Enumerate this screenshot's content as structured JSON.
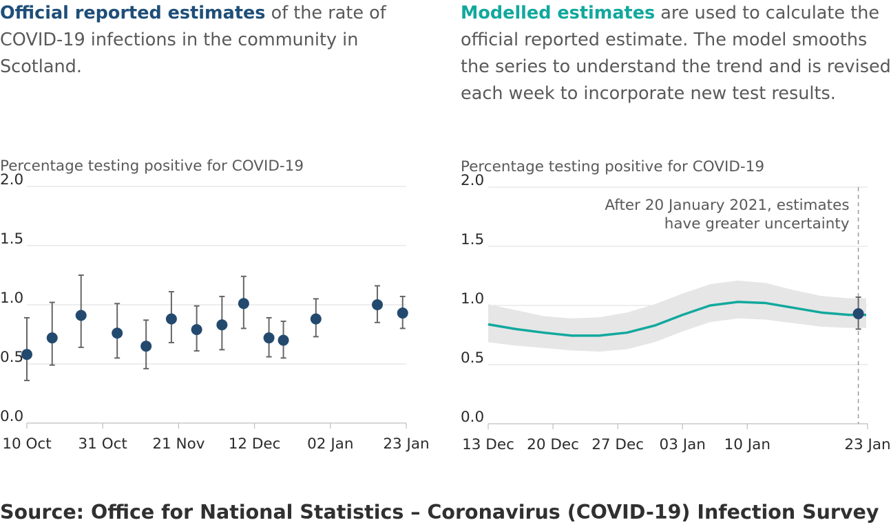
{
  "colors": {
    "official": "#1f4e79",
    "modelled": "#12a89d",
    "band": "#e6e6e6",
    "point": "#234a6e",
    "errorbar": "#666666",
    "grid": "#dedede"
  },
  "left_panel": {
    "highlight": "Official reported estimates",
    "text": " of the rate of COVID-19 infections in the community in Scotland."
  },
  "right_panel": {
    "highlight": "Modelled estimates",
    "text": " are used to calculate the official reported estimate. The model smooths the series to understand the trend and is revised each week to incorporate new test results."
  },
  "source": "Source: Office for National Statistics – Coronavirus (COVID-19) Infection Survey",
  "chart_data": [
    {
      "type": "scatter",
      "ylabel": "Percentage testing positive for COVID-19",
      "ylim": [
        0,
        2.0
      ],
      "yticks": [
        "0.0",
        "0.5",
        "1.0",
        "1.5",
        "2.0"
      ],
      "xlim": [
        "2020-10-10",
        "2021-01-23"
      ],
      "xticks": [
        {
          "date": "2020-10-10",
          "label": "10 Oct"
        },
        {
          "date": "2020-10-31",
          "label": "31 Oct"
        },
        {
          "date": "2020-11-21",
          "label": "21 Nov"
        },
        {
          "date": "2020-12-12",
          "label": "12 Dec"
        },
        {
          "date": "2021-01-02",
          "label": "02 Jan"
        },
        {
          "date": "2021-01-23",
          "label": "23 Jan"
        }
      ],
      "points": [
        {
          "x": "2020-10-10",
          "y": 0.58,
          "low": 0.36,
          "high": 0.89
        },
        {
          "x": "2020-10-17",
          "y": 0.72,
          "low": 0.49,
          "high": 1.02
        },
        {
          "x": "2020-10-25",
          "y": 0.91,
          "low": 0.64,
          "high": 1.25
        },
        {
          "x": "2020-11-04",
          "y": 0.76,
          "low": 0.55,
          "high": 1.01
        },
        {
          "x": "2020-11-12",
          "y": 0.65,
          "low": 0.46,
          "high": 0.87
        },
        {
          "x": "2020-11-19",
          "y": 0.88,
          "low": 0.68,
          "high": 1.11
        },
        {
          "x": "2020-11-26",
          "y": 0.79,
          "low": 0.61,
          "high": 0.99
        },
        {
          "x": "2020-12-03",
          "y": 0.83,
          "low": 0.62,
          "high": 1.07
        },
        {
          "x": "2020-12-09",
          "y": 1.01,
          "low": 0.8,
          "high": 1.24
        },
        {
          "x": "2020-12-16",
          "y": 0.72,
          "low": 0.56,
          "high": 0.89
        },
        {
          "x": "2020-12-20",
          "y": 0.7,
          "low": 0.55,
          "high": 0.86
        },
        {
          "x": "2020-12-29",
          "y": 0.88,
          "low": 0.73,
          "high": 1.05
        },
        {
          "x": "2021-01-15",
          "y": 1.0,
          "low": 0.85,
          "high": 1.16
        },
        {
          "x": "2021-01-22",
          "y": 0.93,
          "low": 0.8,
          "high": 1.07
        }
      ]
    },
    {
      "type": "line",
      "ylabel": "Percentage testing positive for COVID-19",
      "ylim": [
        0,
        2.0
      ],
      "yticks": [
        "0.0",
        "0.5",
        "1.0",
        "1.5",
        "2.0"
      ],
      "xlim": [
        "2020-12-13",
        "2021-01-23"
      ],
      "xticks": [
        {
          "date": "2020-12-13",
          "label": "13 Dec"
        },
        {
          "date": "2020-12-20",
          "label": "20 Dec"
        },
        {
          "date": "2020-12-27",
          "label": "27 Dec"
        },
        {
          "date": "2021-01-03",
          "label": "03 Jan"
        },
        {
          "date": "2021-01-10",
          "label": "10 Jan"
        },
        {
          "date": "2021-01-23",
          "label": "23 Jan"
        }
      ],
      "line": [
        {
          "x": "2020-12-13",
          "y": 0.84,
          "low": 0.69,
          "high": 1.01
        },
        {
          "x": "2020-12-16",
          "y": 0.8,
          "low": 0.66,
          "high": 0.96
        },
        {
          "x": "2020-12-19",
          "y": 0.77,
          "low": 0.64,
          "high": 0.91
        },
        {
          "x": "2020-12-22",
          "y": 0.745,
          "low": 0.62,
          "high": 0.89
        },
        {
          "x": "2020-12-25",
          "y": 0.745,
          "low": 0.61,
          "high": 0.9
        },
        {
          "x": "2020-12-28",
          "y": 0.77,
          "low": 0.63,
          "high": 0.94
        },
        {
          "x": "2020-12-31",
          "y": 0.83,
          "low": 0.69,
          "high": 1.01
        },
        {
          "x": "2021-01-03",
          "y": 0.92,
          "low": 0.78,
          "high": 1.1
        },
        {
          "x": "2021-01-06",
          "y": 1.0,
          "low": 0.86,
          "high": 1.18
        },
        {
          "x": "2021-01-09",
          "y": 1.03,
          "low": 0.89,
          "high": 1.21
        },
        {
          "x": "2021-01-12",
          "y": 1.02,
          "low": 0.88,
          "high": 1.19
        },
        {
          "x": "2021-01-15",
          "y": 0.98,
          "low": 0.85,
          "high": 1.13
        },
        {
          "x": "2021-01-18",
          "y": 0.94,
          "low": 0.82,
          "high": 1.08
        },
        {
          "x": "2021-01-21",
          "y": 0.92,
          "low": 0.81,
          "high": 1.06
        },
        {
          "x": "2021-01-24",
          "y": 0.92,
          "low": 0.81,
          "high": 1.06
        }
      ],
      "point": {
        "x": "2021-01-22",
        "y": 0.93,
        "low": 0.8,
        "high": 1.07
      },
      "reference_line": {
        "x": "2021-01-22",
        "style": "dashed"
      },
      "annotation": [
        "After 20 January 2021, estimates",
        "have greater uncertainty"
      ]
    }
  ]
}
